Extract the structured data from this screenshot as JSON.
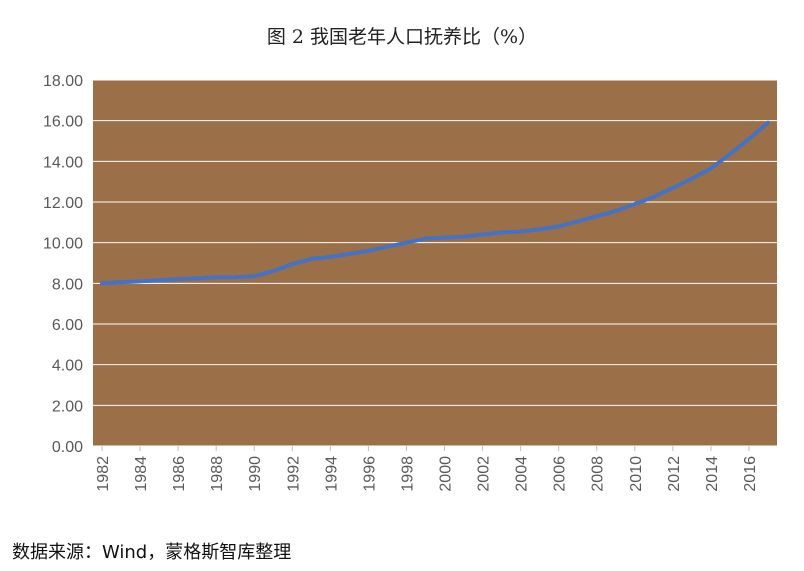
{
  "chart_data": {
    "type": "line",
    "title": "图 2 我国老年人口抚养比（%）",
    "xlabel": "",
    "ylabel": "",
    "ylim": [
      0,
      18
    ],
    "yticks": [
      "0.00",
      "2.00",
      "4.00",
      "6.00",
      "8.00",
      "10.00",
      "12.00",
      "14.00",
      "16.00",
      "18.00"
    ],
    "xticks": [
      "1982",
      "1984",
      "1986",
      "1988",
      "1990",
      "1992",
      "1994",
      "1996",
      "1998",
      "2000",
      "2002",
      "2004",
      "2006",
      "2008",
      "2010",
      "2012",
      "2014",
      "2016"
    ],
    "grid": true,
    "legend": "none",
    "plot_background": "#9b7048",
    "line_color": "#4472c4",
    "gridline_color": "#ffffff",
    "x": [
      1982,
      1983,
      1984,
      1985,
      1986,
      1987,
      1988,
      1989,
      1990,
      1991,
      1992,
      1993,
      1994,
      1995,
      1996,
      1997,
      1998,
      1999,
      2000,
      2001,
      2002,
      2003,
      2004,
      2005,
      2006,
      2007,
      2008,
      2009,
      2010,
      2011,
      2012,
      2013,
      2014,
      2015,
      2016,
      2017
    ],
    "series": [
      {
        "values": [
          8.0,
          8.05,
          8.1,
          8.15,
          8.2,
          8.25,
          8.3,
          8.3,
          8.35,
          8.6,
          8.95,
          9.2,
          9.3,
          9.45,
          9.6,
          9.8,
          10.0,
          10.2,
          10.25,
          10.3,
          10.4,
          10.5,
          10.55,
          10.65,
          10.8,
          11.05,
          11.3,
          11.55,
          11.9,
          12.25,
          12.7,
          13.15,
          13.65,
          14.35,
          15.1,
          15.9
        ]
      }
    ]
  },
  "source_note": "数据来源：Wind，蒙格斯智库整理"
}
